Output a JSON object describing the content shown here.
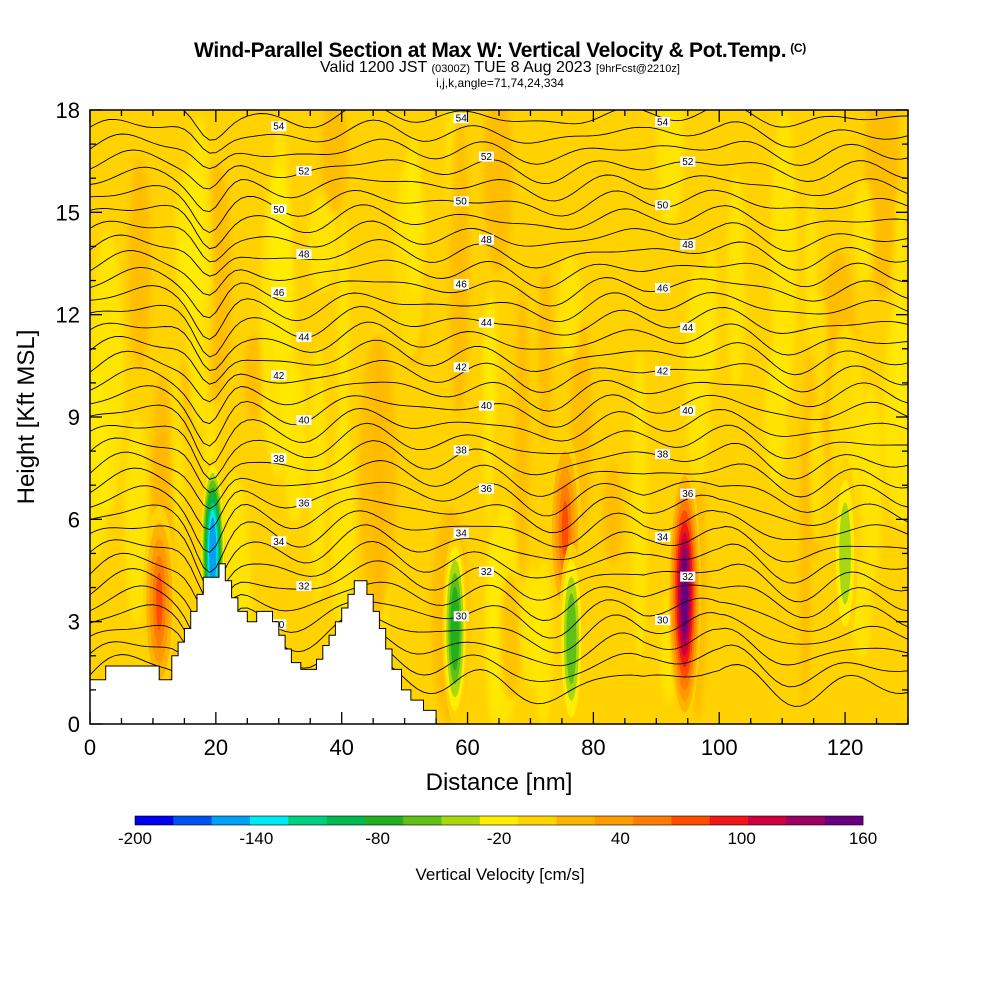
{
  "title": {
    "main": "Wind-Parallel Section at Max W: Vertical Velocity & Pot.Temp.",
    "copyright": "(C)",
    "valid_prefix": "Valid 1200 JST",
    "valid_utc": "(0300Z)",
    "valid_date": "TUE 8 Aug 2023",
    "forecast": "[9hrFcst@2210z]",
    "indices": "i,j,k,angle=71,74,24,334"
  },
  "chart_data": {
    "type": "heatmap",
    "xlabel": "Distance [nm]",
    "ylabel": "Height [Kft MSL]",
    "xlim": [
      0,
      130
    ],
    "ylim": [
      0,
      18
    ],
    "x_ticks": [
      0,
      20,
      40,
      60,
      80,
      100,
      120
    ],
    "y_ticks": [
      0,
      3,
      6,
      9,
      12,
      15,
      18
    ],
    "colorbar": {
      "title": "Vertical Velocity [cm/s]",
      "tick_labels": [
        "-200",
        "-140",
        "-80",
        "-20",
        "40",
        "100",
        "160"
      ],
      "min": -200,
      "max": 160,
      "step": 20,
      "colors": [
        "#0000ee",
        "#0050f0",
        "#00a0f5",
        "#00e8f0",
        "#00cf80",
        "#00b850",
        "#20b020",
        "#60c018",
        "#a8d810",
        "#ffee00",
        "#ffd200",
        "#ffb300",
        "#ff9a00",
        "#ff7c00",
        "#ff4c00",
        "#ee1818",
        "#cc0040",
        "#990060",
        "#660080"
      ]
    },
    "background_range_cm_s": [
      0,
      20
    ],
    "terrain_kft": [
      [
        0,
        1.3
      ],
      [
        2.5,
        1.3
      ],
      [
        2.5,
        1.7
      ],
      [
        11,
        1.7
      ],
      [
        11,
        1.3
      ],
      [
        13,
        1.3
      ],
      [
        13,
        2.0
      ],
      [
        14,
        2.0
      ],
      [
        14,
        2.4
      ],
      [
        15,
        2.4
      ],
      [
        15,
        2.8
      ],
      [
        16,
        2.8
      ],
      [
        16,
        3.3
      ],
      [
        17,
        3.3
      ],
      [
        17,
        3.8
      ],
      [
        18,
        3.8
      ],
      [
        18,
        4.3
      ],
      [
        20.5,
        4.3
      ],
      [
        20.5,
        4.7
      ],
      [
        21.5,
        4.7
      ],
      [
        21.5,
        4.2
      ],
      [
        22.5,
        4.2
      ],
      [
        22.5,
        3.7
      ],
      [
        23.5,
        3.7
      ],
      [
        23.5,
        3.3
      ],
      [
        25,
        3.3
      ],
      [
        25,
        3.0
      ],
      [
        26.5,
        3.0
      ],
      [
        26.5,
        3.3
      ],
      [
        29,
        3.3
      ],
      [
        29,
        3.0
      ],
      [
        30,
        3.0
      ],
      [
        30,
        2.6
      ],
      [
        31,
        2.6
      ],
      [
        31,
        2.2
      ],
      [
        32,
        2.2
      ],
      [
        32,
        1.8
      ],
      [
        33.5,
        1.8
      ],
      [
        33.5,
        1.6
      ],
      [
        36,
        1.6
      ],
      [
        36,
        1.9
      ],
      [
        37,
        1.9
      ],
      [
        37,
        2.3
      ],
      [
        38,
        2.3
      ],
      [
        38,
        2.6
      ],
      [
        39,
        2.6
      ],
      [
        39,
        3.0
      ],
      [
        40,
        3.0
      ],
      [
        40,
        3.4
      ],
      [
        41,
        3.4
      ],
      [
        41,
        3.8
      ],
      [
        42,
        3.8
      ],
      [
        42,
        4.2
      ],
      [
        44,
        4.2
      ],
      [
        44,
        3.8
      ],
      [
        45,
        3.8
      ],
      [
        45,
        3.3
      ],
      [
        46,
        3.3
      ],
      [
        46,
        2.8
      ],
      [
        47,
        2.8
      ],
      [
        47,
        2.2
      ],
      [
        48,
        2.2
      ],
      [
        48,
        1.6
      ],
      [
        49.5,
        1.6
      ],
      [
        49.5,
        1.0
      ],
      [
        51,
        1.0
      ],
      [
        51,
        0.7
      ],
      [
        53,
        0.7
      ],
      [
        53,
        0.4
      ],
      [
        55,
        0.4
      ],
      [
        55,
        0
      ],
      [
        0,
        0
      ]
    ],
    "isentrope_values_K": [
      30,
      32,
      34,
      36,
      38,
      40,
      42,
      44,
      46,
      48,
      50,
      52,
      54
    ],
    "isentrope_labels": [
      "30",
      "32",
      "34",
      "36",
      "38",
      "40",
      "42",
      "44",
      "46",
      "48",
      "50",
      "52",
      "54"
    ],
    "velocity_features": [
      {
        "x": 94.5,
        "height_kft": 3.8,
        "peak_cm_s": 160,
        "sign": "updraft"
      },
      {
        "x": 11,
        "height_kft": 3.6,
        "peak_cm_s": 80,
        "sign": "updraft"
      },
      {
        "x": 19.5,
        "height_kft": 5.0,
        "peak_cm_s": -160,
        "sign": "downdraft"
      },
      {
        "x": 75.5,
        "height_kft": 5.7,
        "peak_cm_s": 80,
        "sign": "updraft"
      },
      {
        "x": 58,
        "height_kft": 2.8,
        "peak_cm_s": -80,
        "sign": "downdraft"
      },
      {
        "x": 76.5,
        "height_kft": 2.5,
        "peak_cm_s": -60,
        "sign": "downdraft"
      },
      {
        "x": 120,
        "height_kft": 5.0,
        "peak_cm_s": -40,
        "sign": "downdraft"
      }
    ]
  }
}
